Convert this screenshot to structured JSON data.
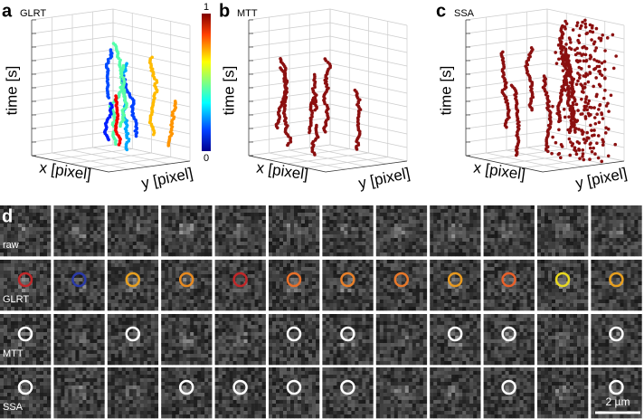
{
  "panels": [
    {
      "label": "a",
      "title": "GLRT",
      "z_label": "time [s]",
      "x_label": "x [pixel]",
      "y_label": "y [pixel]",
      "colorbar_ticks": [
        1,
        0
      ]
    },
    {
      "label": "b",
      "title": "MTT",
      "z_label": "time [s]",
      "x_label": "x [pixel]",
      "y_label": "y [pixel]"
    },
    {
      "label": "c",
      "title": "SSA",
      "z_label": "time [s]",
      "x_label": "x [pixel]",
      "y_label": "y [pixel]"
    }
  ],
  "image_grid": {
    "label": "d",
    "rows": [
      "raw",
      "GLRT",
      "MTT",
      "SSA"
    ],
    "scale_bar": "2 µm"
  }
}
